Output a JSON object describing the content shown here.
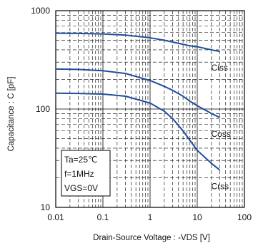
{
  "chart_data": {
    "type": "line",
    "xlabel": "Drain-Source Voltage : -VDS [V]",
    "ylabel": "Capacitance : C [pF]",
    "x_scale": "log",
    "y_scale": "log",
    "xlim": [
      0.01,
      100
    ],
    "ylim": [
      10,
      1000
    ],
    "x_ticks": [
      "0.01",
      "0.1",
      "1",
      "10",
      "100"
    ],
    "y_ticks": [
      "1000",
      "100",
      "10"
    ],
    "grid": true,
    "line_color": "#1f4e9c",
    "series": [
      {
        "name": "Ciss",
        "x": [
          0.01,
          0.03,
          0.1,
          0.3,
          1,
          2,
          3,
          5,
          7,
          10,
          20,
          30
        ],
        "y": [
          590,
          588,
          580,
          565,
          530,
          500,
          480,
          455,
          440,
          430,
          400,
          385
        ]
      },
      {
        "name": "Coss",
        "x": [
          0.01,
          0.03,
          0.1,
          0.3,
          1,
          2,
          3,
          5,
          7,
          10,
          20,
          30
        ],
        "y": [
          255,
          253,
          245,
          230,
          195,
          170,
          155,
          135,
          120,
          108,
          90,
          82
        ]
      },
      {
        "name": "Crss",
        "x": [
          0.01,
          0.03,
          0.1,
          0.3,
          1,
          2,
          3,
          5,
          7,
          10,
          20,
          30
        ],
        "y": [
          145,
          144,
          142,
          135,
          115,
          95,
          80,
          60,
          48,
          38,
          28,
          24
        ]
      }
    ],
    "annotations": {
      "conditions": [
        "Ta=25℃",
        "f=1MHz",
        "VGS=0V"
      ]
    }
  }
}
